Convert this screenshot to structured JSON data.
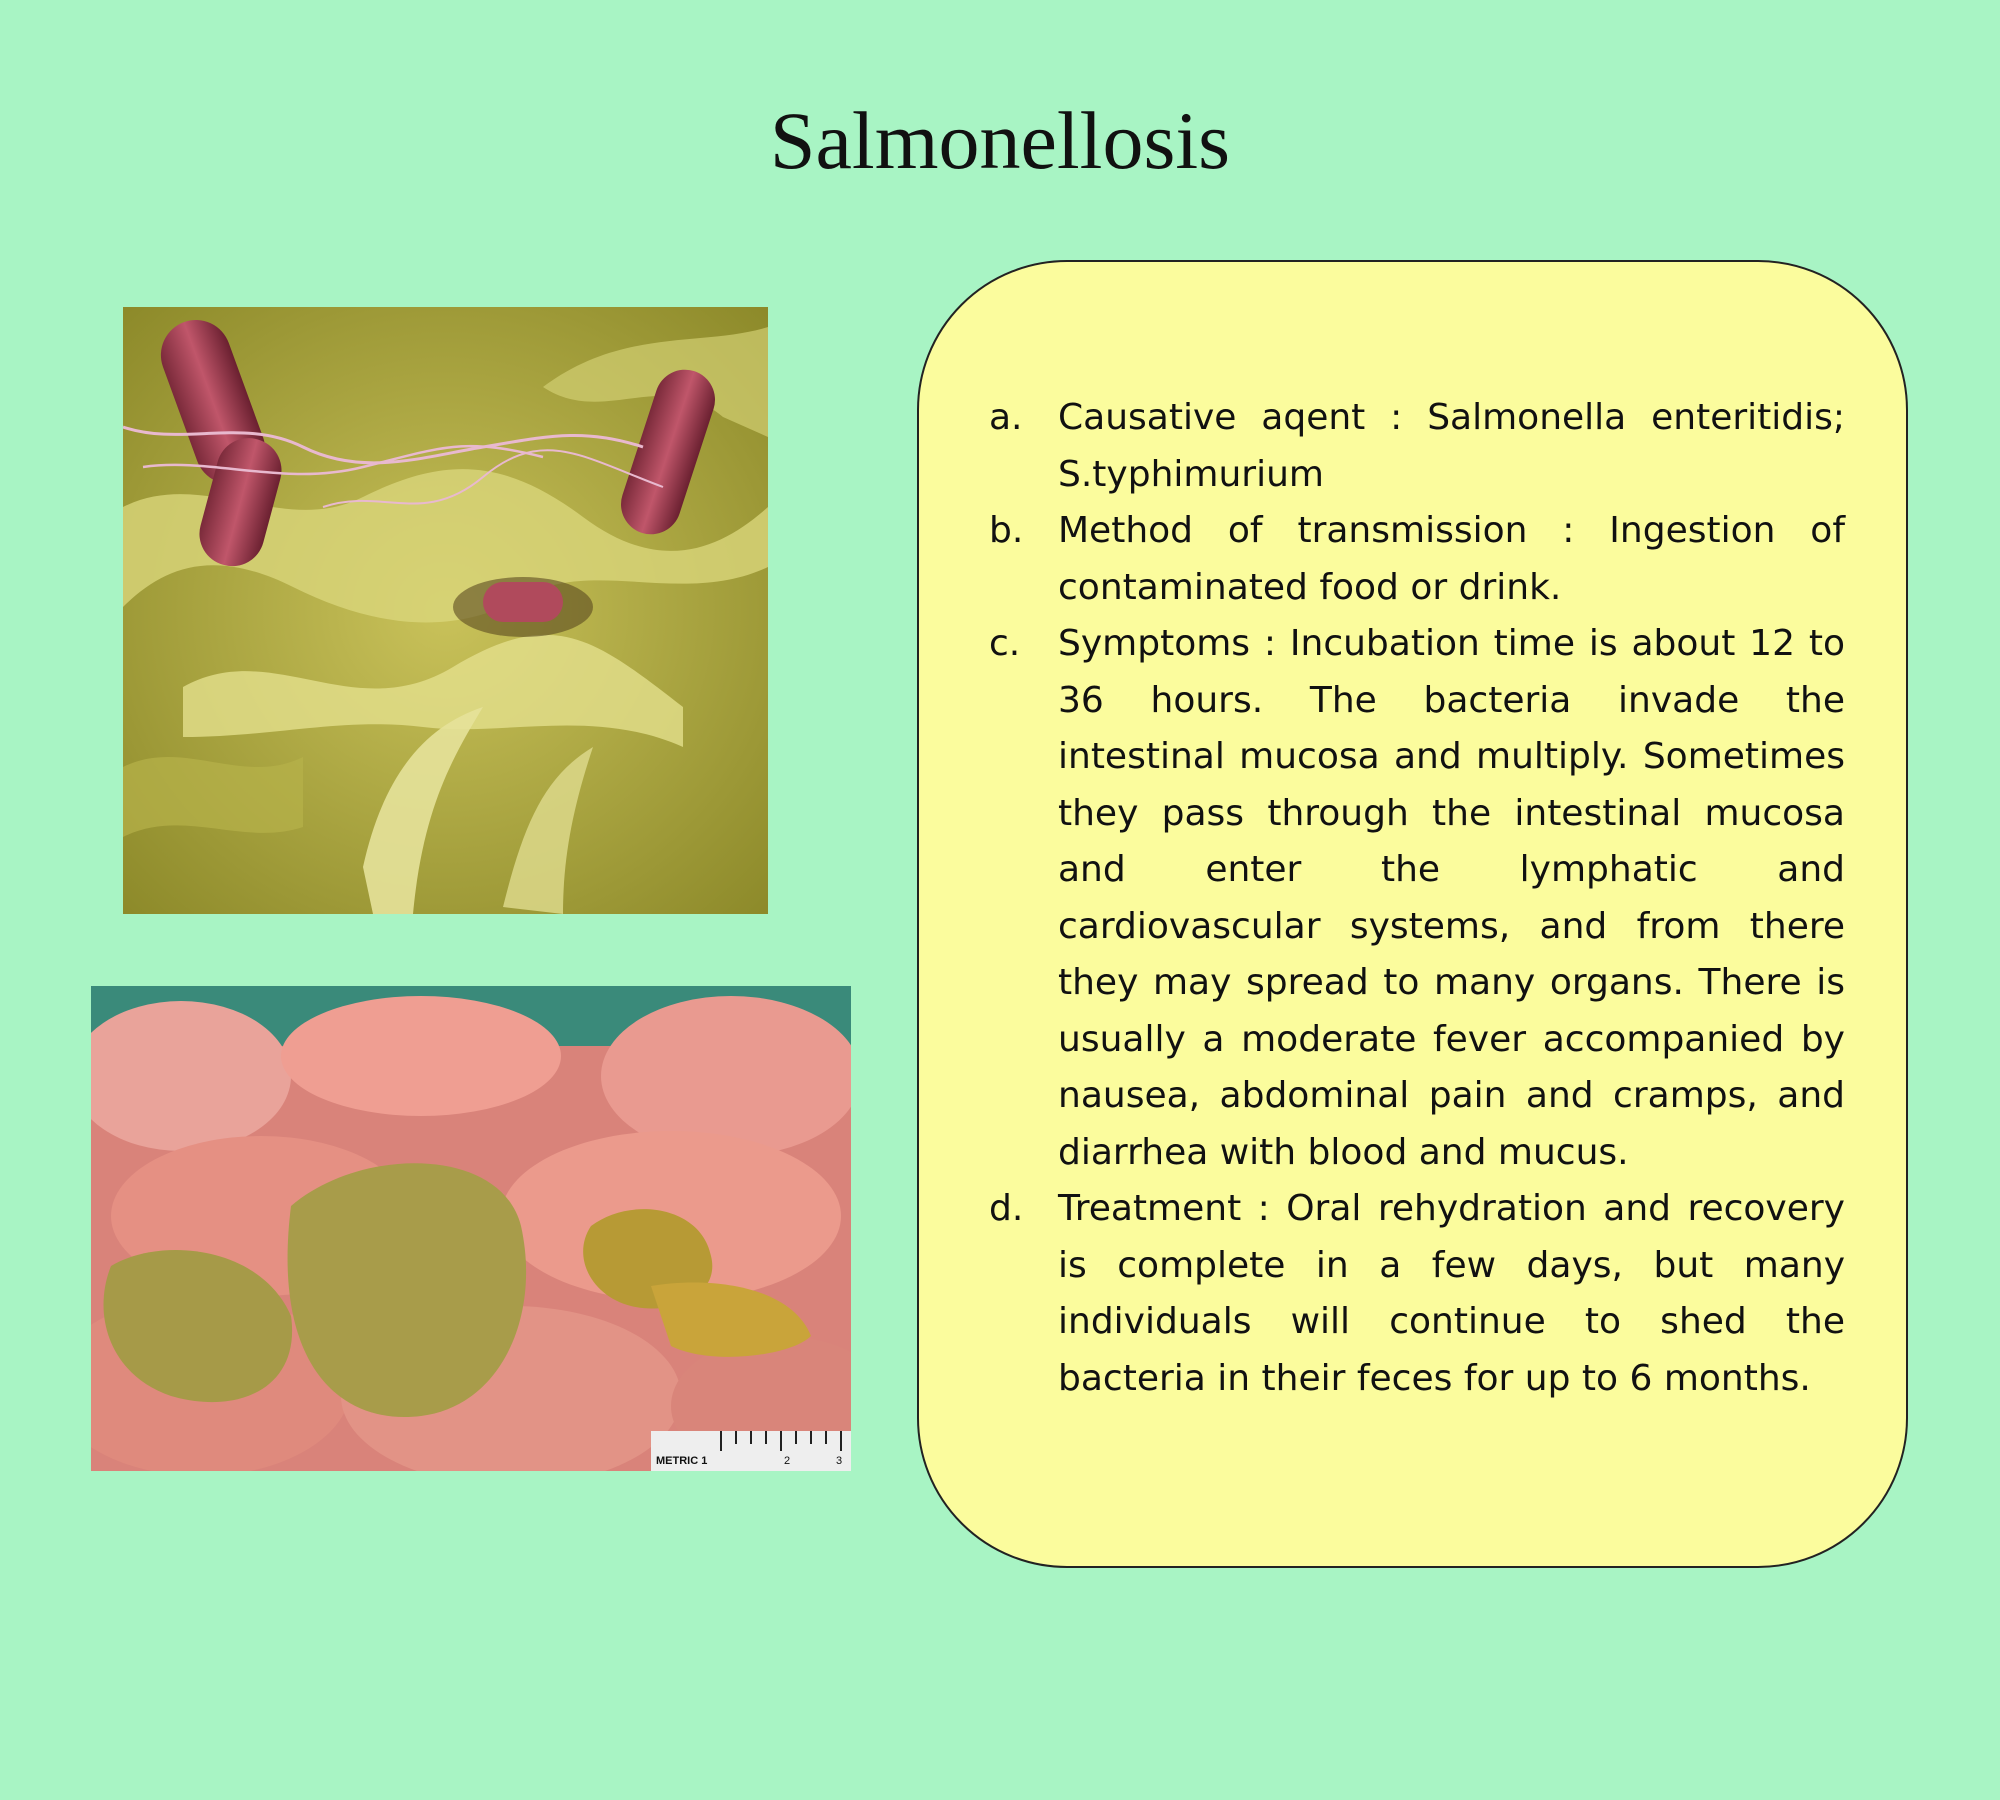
{
  "page": {
    "title": "Salmonellosis",
    "background_color": "#a8f4c4"
  },
  "images": {
    "bacteria_micrograph": {
      "description_icon": "salmonella-micrograph-image"
    },
    "intestine_photo": {
      "description_icon": "infected-intestine-image",
      "ruler_label": "METRIC 1",
      "ruler_marks": [
        "2",
        "3"
      ]
    }
  },
  "info_card": {
    "background_color": "#fbfc9d",
    "items": [
      {
        "marker": "a.",
        "text": "Causative aqent : Salmonella enteritidis; S.typhimurium"
      },
      {
        "marker": "b.",
        "text": "Method of transmission : Ingestion of contaminated food or drink."
      },
      {
        "marker": "c.",
        "text": "Symptoms : Incubation time is about 12 to 36 hours. The bacteria invade the intestinal mucosa and multiply. Sometimes they pass through the intestinal mucosa and enter the lymphatic and cardiovascular systems, and from there they may spread to many organs. There is usually a moderate fever accompanied by nausea, abdominal pain and cramps, and diarrhea with blood and mucus."
      },
      {
        "marker": "d.",
        "text": "Treatment : Oral rehydration and recovery is complete in a few days, but many individuals will continue to shed the bacteria in their feces for up to 6 months."
      }
    ]
  }
}
